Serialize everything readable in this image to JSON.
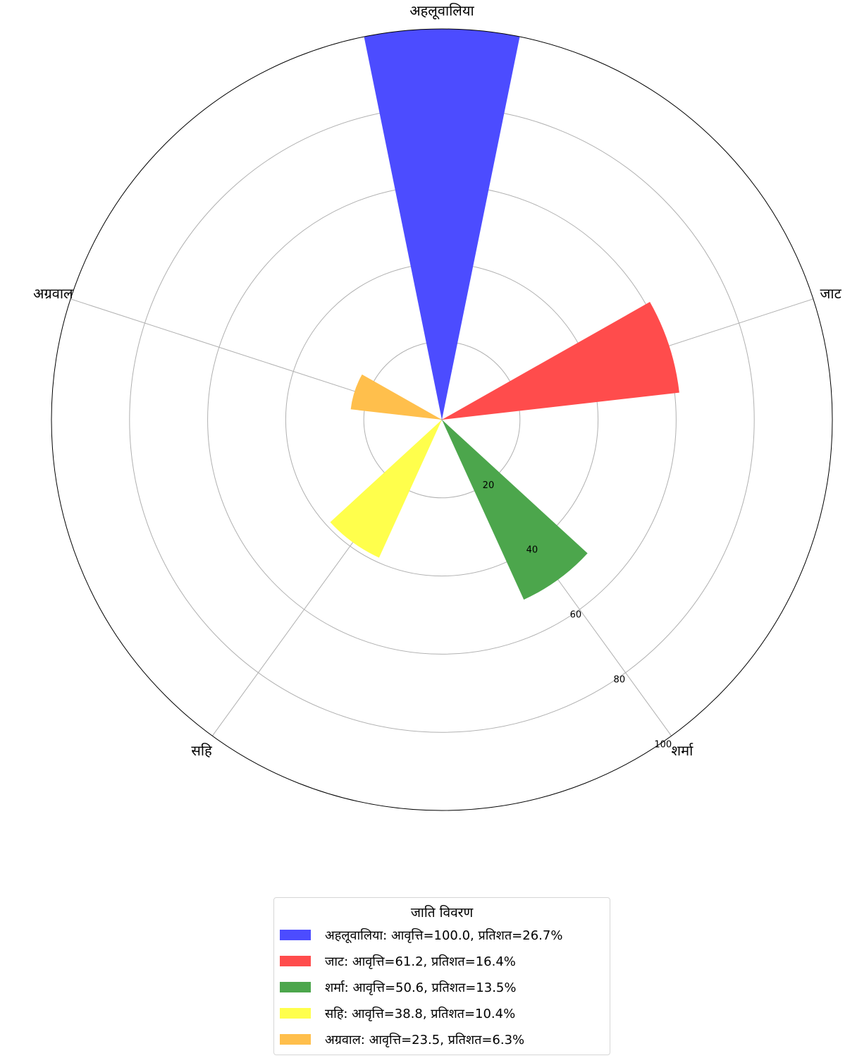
{
  "chart_data": {
    "type": "bar",
    "projection": "polar",
    "categories": [
      "अहलूवालिया",
      "जाट",
      "शर्मा",
      "सहि",
      "अग्रवाल"
    ],
    "values": [
      100.0,
      61.2,
      50.6,
      38.8,
      23.5
    ],
    "colors": [
      "#4c4cff",
      "#ff4c4c",
      "#4ca64c",
      "#ffff4c",
      "#ffbf4c"
    ],
    "radial_ticks": [
      "20",
      "40",
      "60",
      "80",
      "100"
    ],
    "rlim": [
      0,
      100
    ],
    "grid": true,
    "legend": {
      "title": "जाति विवरण",
      "placement": "bottom-center",
      "items": [
        "अहलूवालिया: आवृत्ति=100.0, प्रतिशत=26.7%",
        "जाट: आवृत्ति=61.2, प्रतिशत=16.4%",
        "शर्मा: आवृत्ति=50.6, प्रतिशत=13.5%",
        "सहि: आवृत्ति=38.8, प्रतिशत=10.4%",
        "अग्रवाल: आवृत्ति=23.5, प्रतिशत=6.3%"
      ]
    }
  }
}
